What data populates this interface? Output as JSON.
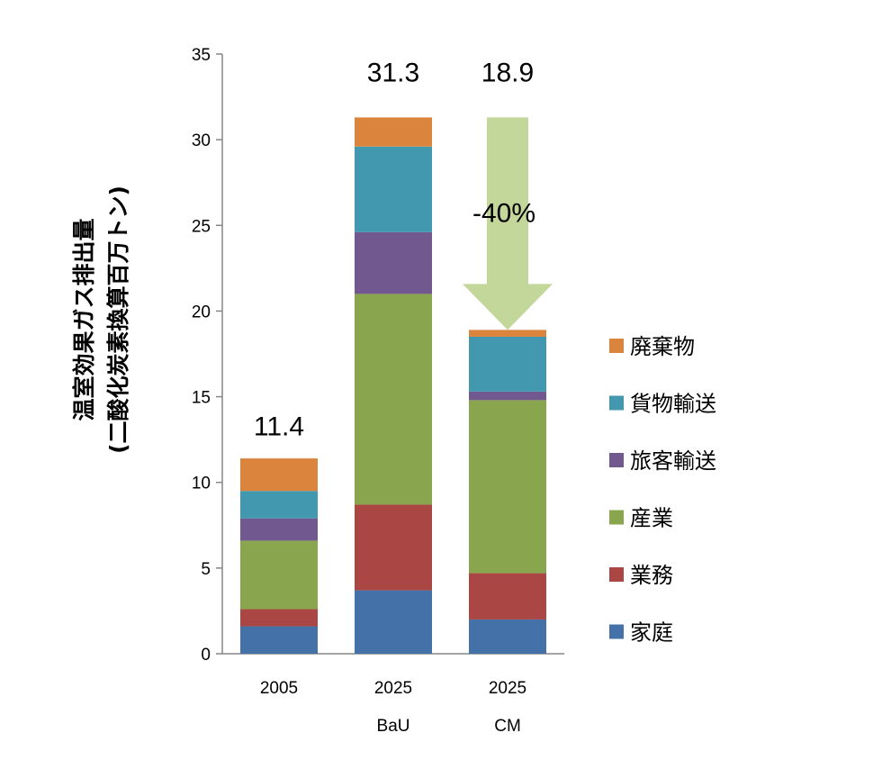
{
  "chart_data": {
    "type": "bar",
    "stacked": true,
    "categories": [
      "2005",
      "2025",
      "2025"
    ],
    "category_sublabels": [
      "",
      "BaU",
      "CM"
    ],
    "ylabel_lines": [
      "温室効果ガス排出量",
      "(二酸化炭素換算百万トン)"
    ],
    "ylim": [
      0,
      35
    ],
    "yticks": [
      0,
      5,
      10,
      15,
      20,
      25,
      30,
      35
    ],
    "grid": false,
    "legend_position": "right",
    "series": [
      {
        "name": "家庭",
        "color": "#4472A8",
        "values": [
          1.6,
          3.7,
          2.0
        ]
      },
      {
        "name": "業務",
        "color": "#AA4644",
        "values": [
          1.0,
          5.0,
          2.7
        ]
      },
      {
        "name": "産業",
        "color": "#89A54E",
        "values": [
          4.0,
          12.3,
          10.1
        ]
      },
      {
        "name": "旅客輸送",
        "color": "#71588F",
        "values": [
          1.3,
          3.6,
          0.5
        ]
      },
      {
        "name": "貨物輸送",
        "color": "#4198AF",
        "values": [
          1.6,
          5.0,
          3.2
        ]
      },
      {
        "name": "廃棄物",
        "color": "#DB843D",
        "values": [
          1.9,
          1.7,
          0.4
        ]
      }
    ],
    "totals": [
      "11.4",
      "31.3",
      "18.9"
    ],
    "annotation": {
      "text": "-40%",
      "from_value": 31.3,
      "to_value": 18.9,
      "color": "#C4D79B"
    }
  }
}
